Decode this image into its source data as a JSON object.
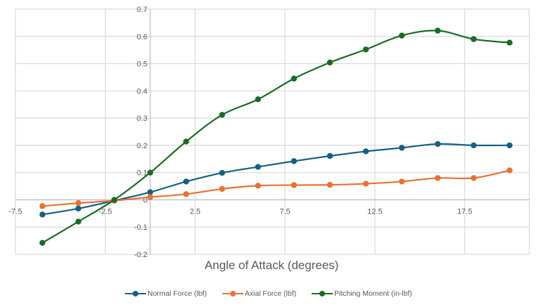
{
  "chart_data": {
    "type": "line",
    "title": "",
    "xlabel": "Angle of Attack (degrees)",
    "ylabel": "",
    "xlim": [
      -7.5,
      20.5
    ],
    "ylim": [
      -0.2,
      0.7
    ],
    "x_ticks": [
      "-7.5",
      "-2.5",
      "2.5",
      "7.5",
      "12.5",
      "17.5"
    ],
    "x_tick_values": [
      -7.5,
      -2.5,
      2.5,
      7.5,
      12.5,
      17.5
    ],
    "y_ticks": [
      "0.7",
      "0.6",
      "0.5",
      "0.4",
      "0.3",
      "0.2",
      "0.1",
      "0",
      "-0.1",
      "-0.2"
    ],
    "y_tick_values": [
      0.7,
      0.6,
      0.5,
      0.4,
      0.3,
      0.2,
      0.1,
      0,
      -0.1,
      -0.2
    ],
    "grid": true,
    "smooth": true,
    "legend_position": "bottom",
    "x": [
      -6,
      -4,
      -2,
      0,
      2,
      4,
      6,
      8,
      10,
      12,
      14,
      16,
      18,
      20
    ],
    "series": [
      {
        "name": "Normal Force (lbf)",
        "color": "#156082",
        "values": [
          -0.054,
          -0.032,
          -0.003,
          0.028,
          0.067,
          0.099,
          0.121,
          0.142,
          0.161,
          0.178,
          0.191,
          0.205,
          0.2,
          0.2
        ]
      },
      {
        "name": "Axial Force (lbf)",
        "color": "#E97132",
        "values": [
          -0.023,
          -0.012,
          -0.003,
          0.01,
          0.021,
          0.04,
          0.052,
          0.054,
          0.055,
          0.059,
          0.067,
          0.08,
          0.08,
          0.108
        ]
      },
      {
        "name": "Pitching Moment (in-lbf)",
        "color": "#196B24",
        "values": [
          -0.158,
          -0.08,
          0.0,
          0.1,
          0.214,
          0.312,
          0.369,
          0.445,
          0.504,
          0.552,
          0.603,
          0.621,
          0.59,
          0.577
        ]
      }
    ]
  },
  "legend": {
    "items": [
      {
        "label": "Normal Force (lbf)",
        "color": "#156082"
      },
      {
        "label": "Axial Force (lbf)",
        "color": "#E97132"
      },
      {
        "label": "Pitching Moment (in-lbf)",
        "color": "#196B24"
      }
    ]
  }
}
